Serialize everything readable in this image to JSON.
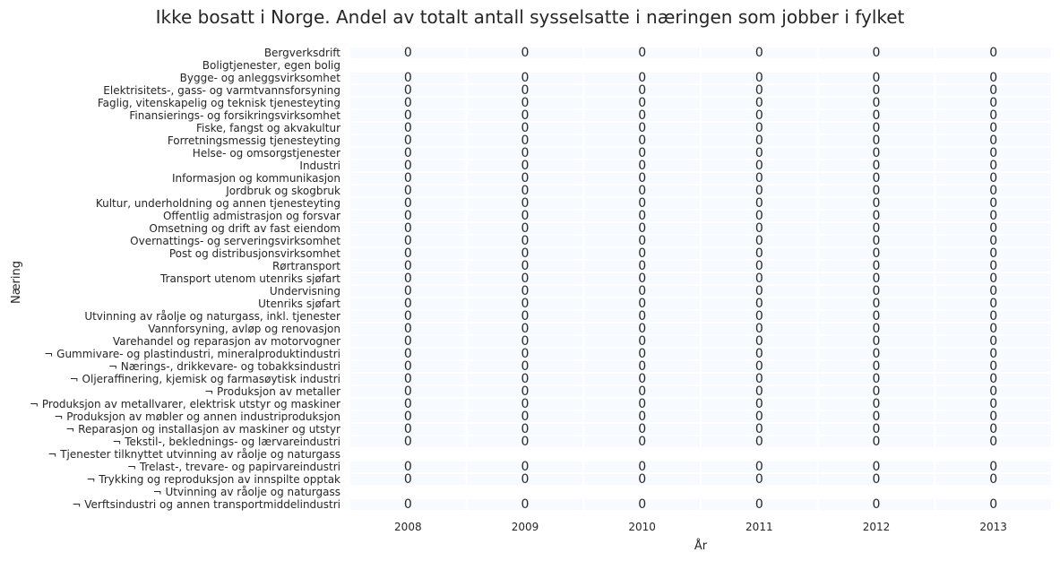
{
  "chart_data": {
    "type": "heatmap",
    "title": "Ikke bosatt i Norge. Andel av totalt antall sysselsatte i næringen som jobber i fylket",
    "xlabel": "År",
    "ylabel": "Næring",
    "x": [
      "2008",
      "2009",
      "2010",
      "2011",
      "2012",
      "2013"
    ],
    "y": [
      "Bergverksdrift",
      "Boligtjenester, egen bolig",
      "Bygge- og anleggsvirksomhet",
      "Elektrisitets-, gass- og varmtvannsforsyning",
      "Faglig, vitenskapelig og teknisk tjenesteyting",
      "Finansierings- og forsikringsvirksomhet",
      "Fiske, fangst og akvakultur",
      "Forretningsmessig tjenesteyting",
      "Helse- og omsorgstjenester",
      "Industri",
      "Informasjon og kommunikasjon",
      "Jordbruk og skogbruk",
      "Kultur, underholdning og annen tjenesteyting",
      "Offentlig admistrasjon og forsvar",
      "Omsetning og drift av fast eiendom",
      "Overnattings- og serveringsvirksomhet",
      "Post og distribusjonsvirksomhet",
      "Rørtransport",
      "Transport utenom utenriks sjøfart",
      "Undervisning",
      "Utenriks sjøfart",
      "Utvinning av råolje og naturgass, inkl. tjenester",
      "Vannforsyning, avløp og renovasjon",
      "Varehandel og reparasjon av motorvogner",
      "¬ Gummivare- og plastindustri, mineralproduktindustri",
      "¬ Nærings-, drikkevare- og tobakksindustri",
      "¬ Oljeraffinering, kjemisk og farmasøytisk industri",
      "¬ Produksjon av metaller",
      "¬ Produksjon av metallvarer, elektrisk utstyr og maskiner",
      "¬ Produksjon av møbler og annen industriproduksjon",
      "¬ Reparasjon og installasjon av maskiner og utstyr",
      "¬ Tekstil-, beklednings- og lærvareindustri",
      "¬ Tjenester tilknyttet utvinning av råolje og naturgass",
      "¬ Trelast-, trevare- og papirvareindustri",
      "¬ Trykking og reproduksjon av innspilte opptak",
      "¬ Utvinning av råolje og naturgass",
      "¬ Verftsindustri og annen transportmiddelindustri"
    ],
    "values": [
      [
        0,
        0,
        0,
        0,
        0,
        0
      ],
      [
        null,
        null,
        null,
        null,
        null,
        null
      ],
      [
        0,
        0,
        0,
        0,
        0,
        0
      ],
      [
        0,
        0,
        0,
        0,
        0,
        0
      ],
      [
        0,
        0,
        0,
        0,
        0,
        0
      ],
      [
        0,
        0,
        0,
        0,
        0,
        0
      ],
      [
        0,
        0,
        0,
        0,
        0,
        0
      ],
      [
        0,
        0,
        0,
        0,
        0,
        0
      ],
      [
        0,
        0,
        0,
        0,
        0,
        0
      ],
      [
        0,
        0,
        0,
        0,
        0,
        0
      ],
      [
        0,
        0,
        0,
        0,
        0,
        0
      ],
      [
        0,
        0,
        0,
        0,
        0,
        0
      ],
      [
        0,
        0,
        0,
        0,
        0,
        0
      ],
      [
        0,
        0,
        0,
        0,
        0,
        0
      ],
      [
        0,
        0,
        0,
        0,
        0,
        0
      ],
      [
        0,
        0,
        0,
        0,
        0,
        0
      ],
      [
        0,
        0,
        0,
        0,
        0,
        0
      ],
      [
        0,
        0,
        0,
        0,
        0,
        0
      ],
      [
        0,
        0,
        0,
        0,
        0,
        0
      ],
      [
        0,
        0,
        0,
        0,
        0,
        0
      ],
      [
        0,
        0,
        0,
        0,
        0,
        0
      ],
      [
        0,
        0,
        0,
        0,
        0,
        0
      ],
      [
        0,
        0,
        0,
        0,
        0,
        0
      ],
      [
        0,
        0,
        0,
        0,
        0,
        0
      ],
      [
        0,
        0,
        0,
        0,
        0,
        0
      ],
      [
        0,
        0,
        0,
        0,
        0,
        0
      ],
      [
        0,
        0,
        0,
        0,
        0,
        0
      ],
      [
        0,
        0,
        0,
        0,
        0,
        0
      ],
      [
        0,
        0,
        0,
        0,
        0,
        0
      ],
      [
        0,
        0,
        0,
        0,
        0,
        0
      ],
      [
        0,
        0,
        0,
        0,
        0,
        0
      ],
      [
        0,
        0,
        0,
        0,
        0,
        0
      ],
      [
        null,
        null,
        null,
        null,
        null,
        null
      ],
      [
        0,
        0,
        0,
        0,
        0,
        0
      ],
      [
        0,
        0,
        0,
        0,
        0,
        0
      ],
      [
        null,
        null,
        null,
        null,
        null,
        null
      ],
      [
        0,
        0,
        0,
        0,
        0,
        0
      ]
    ],
    "cell_color": "#f7fbff",
    "text_color": "#262626"
  }
}
